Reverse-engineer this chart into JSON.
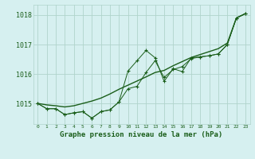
{
  "title": "Graphe pression niveau de la mer (hPa)",
  "bg_color": "#d6f0f0",
  "plot_bg_color": "#d6f0f0",
  "grid_color": "#b0d4cc",
  "line_color": "#1a5e1a",
  "x_labels": [
    "0",
    "1",
    "2",
    "3",
    "4",
    "5",
    "6",
    "7",
    "8",
    "9",
    "10",
    "11",
    "12",
    "13",
    "14",
    "15",
    "16",
    "17",
    "18",
    "19",
    "20",
    "21",
    "22",
    "23"
  ],
  "ylim": [
    1014.3,
    1018.35
  ],
  "yticks": [
    1015,
    1016,
    1017,
    1018
  ],
  "series1_x": [
    0,
    1,
    2,
    3,
    4,
    5,
    6,
    7,
    8,
    9,
    10,
    11,
    12,
    13,
    14,
    15,
    16,
    17,
    18,
    19,
    20,
    21,
    22,
    23
  ],
  "series1_y": [
    1015.0,
    1014.82,
    1014.82,
    1014.62,
    1014.68,
    1014.72,
    1014.5,
    1014.72,
    1014.78,
    1015.05,
    1015.5,
    1015.58,
    1016.05,
    1016.45,
    1015.88,
    1016.15,
    1016.25,
    1016.52,
    1016.58,
    1016.62,
    1016.68,
    1017.0,
    1017.9,
    1018.05
  ],
  "series2_x": [
    0,
    1,
    2,
    3,
    4,
    5,
    6,
    7,
    8,
    9,
    10,
    11,
    12,
    13,
    14,
    15,
    16,
    17,
    18,
    19,
    20,
    21,
    22,
    23
  ],
  "series2_y": [
    1015.0,
    1014.82,
    1014.82,
    1014.62,
    1014.68,
    1014.72,
    1014.5,
    1014.72,
    1014.78,
    1015.05,
    1016.1,
    1016.45,
    1016.8,
    1016.55,
    1015.75,
    1016.18,
    1016.08,
    1016.55,
    1016.58,
    1016.62,
    1016.68,
    1017.0,
    1017.9,
    1018.05
  ],
  "smooth_x": [
    0,
    1,
    2,
    3,
    4,
    5,
    6,
    7,
    8,
    9,
    10,
    11,
    12,
    13,
    14,
    15,
    16,
    17,
    18,
    19,
    20,
    21,
    22,
    23
  ],
  "smooth_y": [
    1015.0,
    1014.95,
    1014.92,
    1014.88,
    1014.92,
    1015.0,
    1015.08,
    1015.18,
    1015.32,
    1015.48,
    1015.62,
    1015.76,
    1015.9,
    1016.05,
    1016.12,
    1016.28,
    1016.42,
    1016.56,
    1016.66,
    1016.76,
    1016.86,
    1017.05,
    1017.9,
    1018.05
  ]
}
